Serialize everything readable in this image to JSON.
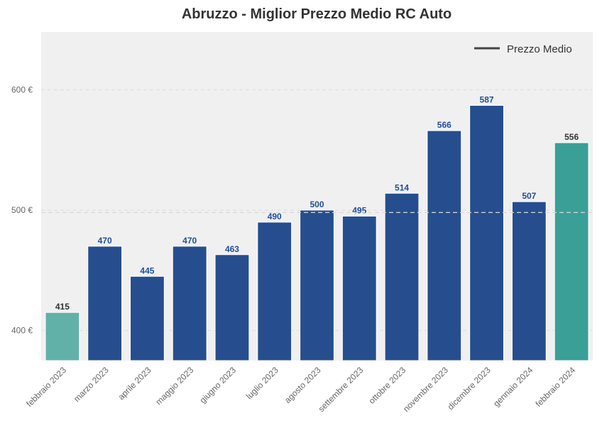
{
  "chart_data": {
    "type": "bar",
    "title": "Abruzzo - Miglior Prezzo Medio RC Auto",
    "categories": [
      "febbraio 2023",
      "marzo 2023",
      "aprile 2023",
      "maggio 2023",
      "giugno 2023",
      "luglio 2023",
      "agosto 2023",
      "settembre 2023",
      "ottobre 2023",
      "novembre 2023",
      "dicembre 2023",
      "gennaio 2024",
      "febbraio 2024"
    ],
    "values": [
      415,
      470,
      445,
      470,
      463,
      490,
      500,
      495,
      514,
      566,
      587,
      507,
      556
    ],
    "colors": [
      "#62b1a8",
      "#264e8e",
      "#264e8e",
      "#264e8e",
      "#264e8e",
      "#264e8e",
      "#264e8e",
      "#264e8e",
      "#264e8e",
      "#264e8e",
      "#264e8e",
      "#264e8e",
      "#3a9f97"
    ],
    "label_colors": [
      "#333333",
      "#1f4e9a",
      "#1f4e9a",
      "#1f4e9a",
      "#1f4e9a",
      "#1f4e9a",
      "#1f4e9a",
      "#1f4e9a",
      "#1f4e9a",
      "#1f4e9a",
      "#1f4e9a",
      "#1f4e9a",
      "#333333"
    ],
    "reference_line": {
      "name": "Prezzo Medio",
      "value": 498
    },
    "ylim": [
      375,
      648
    ],
    "yticks": [
      {
        "value": 400,
        "label": "400 €"
      },
      {
        "value": 500,
        "label": "500 €"
      },
      {
        "value": 600,
        "label": "600 €"
      }
    ],
    "grid": true,
    "legend": "upper right"
  }
}
